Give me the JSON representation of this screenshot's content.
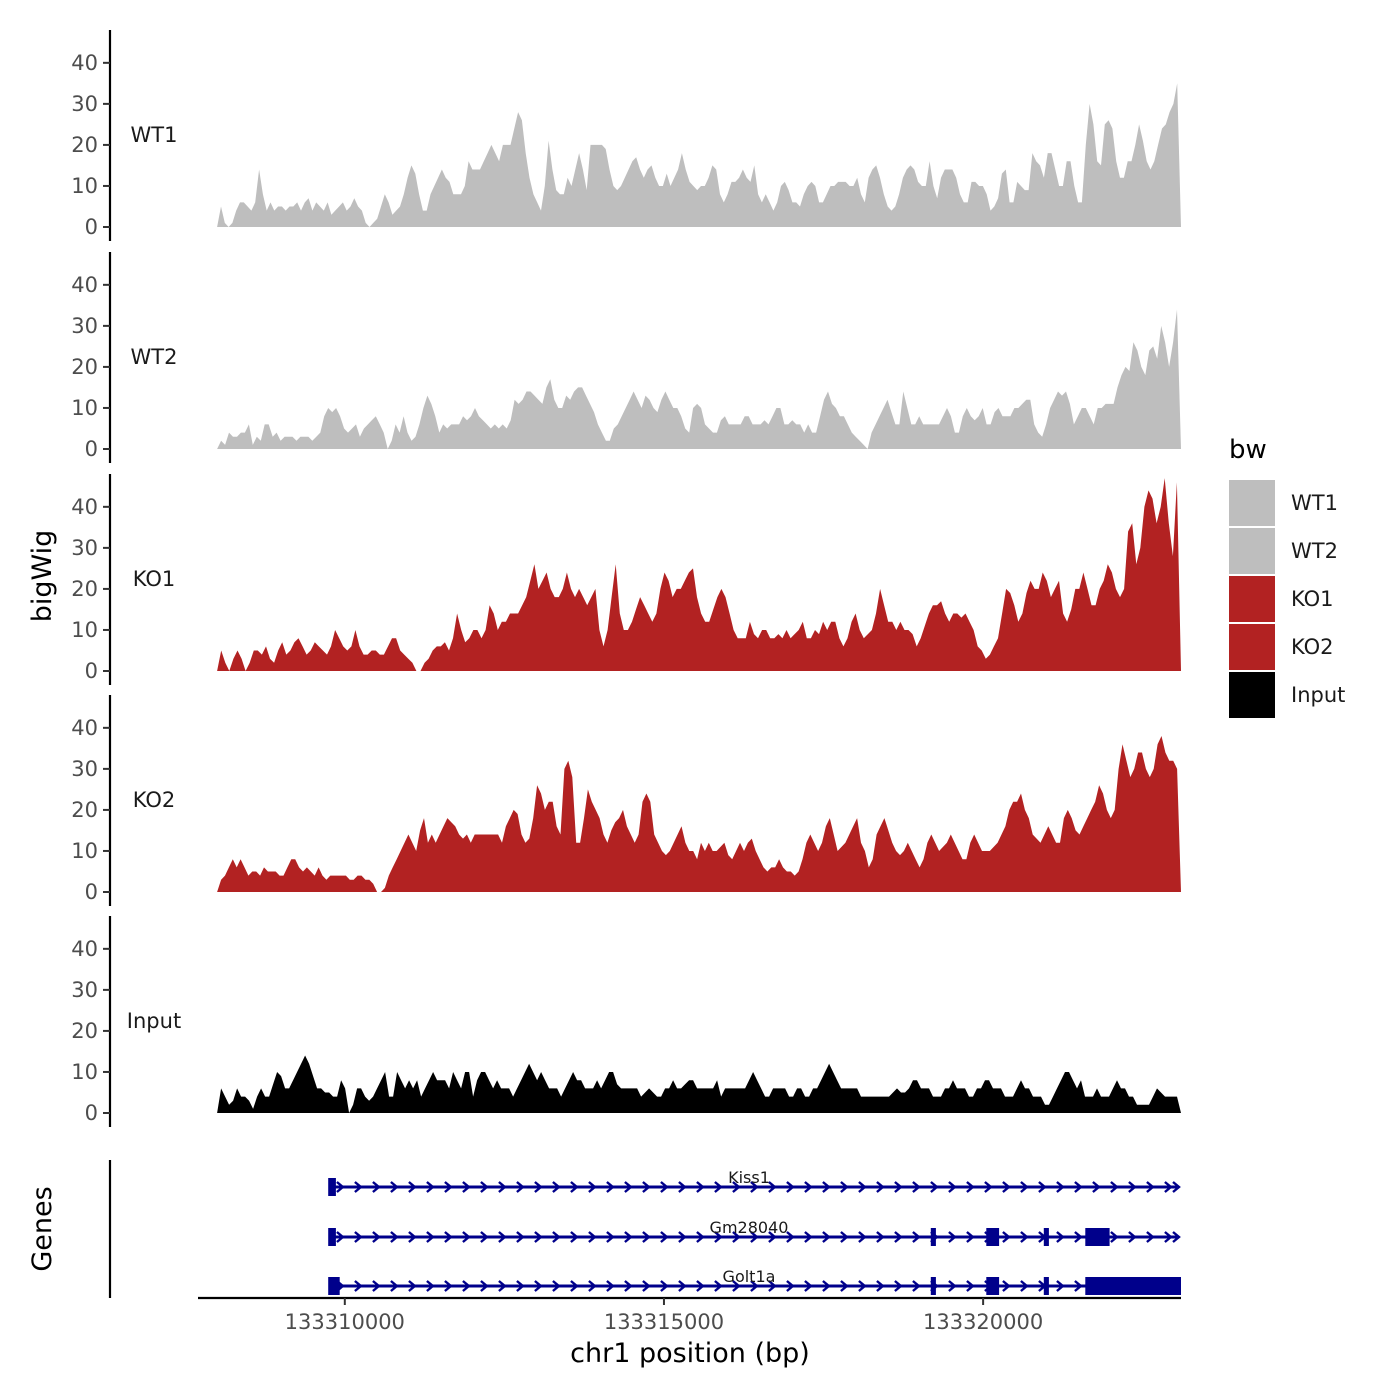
{
  "chart_data": {
    "type": "area",
    "y_axis_title": "bigWig",
    "genes_axis_title": "Genes",
    "x_axis_title": "chr1 position (bp)",
    "xlim": [
      133307700,
      133323100
    ],
    "ylim": [
      0,
      48
    ],
    "y_ticks": [
      0,
      10,
      20,
      30,
      40
    ],
    "x_ticks": [
      133310000,
      133315000,
      133320000
    ],
    "x_tick_labels": [
      "133310000",
      "133315000",
      "133320000"
    ],
    "region_start": 133308000,
    "region_end": 133323100,
    "step_bp": 100,
    "legend": {
      "title": "bw",
      "entries": [
        {
          "label": "WT1",
          "color": "#bebebe"
        },
        {
          "label": "WT2",
          "color": "#bebebe"
        },
        {
          "label": "KO1",
          "color": "#b22222"
        },
        {
          "label": "KO2",
          "color": "#b22222"
        },
        {
          "label": "Input",
          "color": "#000000"
        }
      ]
    },
    "tracks": [
      {
        "name": "WT1",
        "color": "#bebebe",
        "values": [
          0,
          5,
          1,
          0,
          1,
          4,
          6,
          6,
          5,
          4,
          6,
          14,
          8,
          4,
          6,
          4,
          5,
          5,
          4,
          5,
          5,
          6,
          4,
          6,
          7,
          4,
          6,
          5,
          4,
          6,
          3,
          4,
          5,
          6,
          4,
          5,
          7,
          5,
          4,
          1,
          0,
          1,
          2,
          5,
          8,
          6,
          3,
          4,
          5,
          8,
          12,
          15,
          13,
          8,
          4,
          4,
          8,
          10,
          12,
          14,
          12,
          11,
          8,
          8,
          8,
          10,
          16,
          14,
          14,
          14,
          16,
          18,
          20,
          18,
          16,
          20,
          20,
          20,
          24,
          28,
          26,
          18,
          12,
          8,
          6,
          4,
          10,
          21,
          14,
          9,
          8,
          8,
          12,
          10,
          14,
          18,
          14,
          9,
          20,
          20,
          20,
          20,
          19,
          14,
          10,
          9,
          10,
          12,
          14,
          16,
          17,
          14,
          12,
          14,
          15,
          12,
          10,
          10,
          13,
          10,
          12,
          14,
          18,
          14,
          11,
          10,
          9,
          10,
          10,
          12,
          15,
          14,
          8,
          6,
          8,
          11,
          11,
          12,
          14,
          12,
          11,
          15,
          8,
          6,
          8,
          6,
          4,
          6,
          10,
          11,
          9,
          6,
          6,
          5,
          8,
          10,
          11,
          10,
          6,
          6,
          8,
          10,
          10,
          11,
          11,
          11,
          10,
          10,
          12,
          8,
          6,
          12,
          14,
          15,
          12,
          8,
          5,
          4,
          5,
          8,
          12,
          14,
          15,
          14,
          11,
          10,
          10,
          16,
          10,
          7,
          12,
          14,
          14,
          14,
          12,
          8,
          6,
          6,
          11,
          11,
          10,
          10,
          8,
          4,
          5,
          7,
          13,
          14,
          6,
          6,
          11,
          10,
          9,
          9,
          18,
          16,
          15,
          12,
          18,
          18,
          14,
          10,
          10,
          16,
          16,
          10,
          6,
          6,
          20,
          30,
          25,
          16,
          15,
          25,
          26,
          24,
          16,
          12,
          12,
          16,
          16,
          20,
          25,
          21,
          16,
          14,
          16,
          20,
          24,
          25,
          28,
          30,
          35,
          0
        ]
      },
      {
        "name": "WT2",
        "color": "#bebebe",
        "values": [
          0,
          2,
          1,
          4,
          3,
          3,
          4,
          4,
          6,
          1,
          3,
          2,
          6,
          6,
          3,
          4,
          2,
          3,
          3,
          3,
          2,
          3,
          3,
          3,
          2,
          3,
          4,
          8,
          10,
          9,
          10,
          8,
          5,
          4,
          5,
          6,
          3,
          5,
          6,
          7,
          8,
          6,
          4,
          0,
          2,
          6,
          4,
          8,
          4,
          2,
          3,
          6,
          10,
          13,
          11,
          8,
          4,
          6,
          5,
          6,
          6,
          6,
          8,
          7,
          8,
          10,
          8,
          7,
          6,
          5,
          6,
          5,
          6,
          5,
          7,
          12,
          11,
          12,
          14,
          14,
          13,
          12,
          11,
          15,
          17,
          12,
          10,
          10,
          13,
          12,
          14,
          15,
          15,
          13,
          11,
          9,
          6,
          4,
          2,
          2,
          5,
          6,
          8,
          10,
          12,
          14,
          12,
          10,
          13,
          12,
          10,
          9,
          12,
          14,
          12,
          10,
          10,
          8,
          5,
          4,
          10,
          11,
          10,
          6,
          5,
          4,
          4,
          7,
          8,
          6,
          6,
          6,
          6,
          8,
          8,
          6,
          6,
          6,
          7,
          6,
          8,
          10,
          10,
          6,
          6,
          7,
          6,
          6,
          4,
          6,
          4,
          4,
          8,
          12,
          14,
          11,
          10,
          8,
          8,
          6,
          4,
          3,
          2,
          1,
          0,
          4,
          6,
          8,
          10,
          12,
          9,
          6,
          6,
          14,
          10,
          6,
          6,
          8,
          6,
          6,
          6,
          6,
          6,
          8,
          10,
          8,
          4,
          4,
          8,
          10,
          8,
          7,
          8,
          10,
          6,
          6,
          9,
          10,
          8,
          8,
          8,
          10,
          10,
          11,
          12,
          12,
          6,
          4,
          3,
          6,
          10,
          12,
          14,
          13,
          14,
          11,
          6,
          8,
          10,
          10,
          8,
          6,
          10,
          10,
          11,
          11,
          11,
          15,
          18,
          20,
          19,
          26,
          24,
          20,
          18,
          24,
          25,
          22,
          30,
          26,
          20,
          26,
          34,
          0
        ]
      },
      {
        "name": "KO1",
        "color": "#b22222",
        "values": [
          0,
          5,
          2,
          0,
          3,
          5,
          3,
          0,
          2,
          5,
          5,
          4,
          6,
          3,
          2,
          5,
          7,
          4,
          5,
          7,
          8,
          6,
          4,
          5,
          7,
          6,
          5,
          4,
          6,
          10,
          8,
          6,
          5,
          6,
          10,
          6,
          4,
          4,
          5,
          5,
          4,
          4,
          6,
          8,
          8,
          5,
          4,
          3,
          2,
          0,
          0,
          2,
          3,
          5,
          6,
          6,
          7,
          5,
          8,
          14,
          10,
          7,
          8,
          10,
          10,
          8,
          10,
          16,
          14,
          10,
          12,
          12,
          14,
          14,
          14,
          16,
          18,
          22,
          26,
          20,
          22,
          24,
          20,
          18,
          18,
          20,
          24,
          20,
          18,
          20,
          18,
          16,
          18,
          20,
          10,
          6,
          10,
          18,
          26,
          14,
          10,
          10,
          12,
          15,
          18,
          16,
          14,
          12,
          14,
          20,
          24,
          22,
          18,
          20,
          20,
          22,
          24,
          25,
          18,
          14,
          12,
          12,
          15,
          18,
          20,
          18,
          14,
          10,
          8,
          8,
          8,
          12,
          9,
          8,
          10,
          10,
          8,
          8,
          9,
          8,
          10,
          8,
          9,
          10,
          12,
          8,
          8,
          10,
          9,
          12,
          10,
          12,
          12,
          8,
          6,
          8,
          12,
          14,
          10,
          8,
          9,
          10,
          14,
          20,
          16,
          12,
          12,
          10,
          12,
          10,
          10,
          9,
          6,
          8,
          11,
          14,
          16,
          16,
          17,
          14,
          12,
          14,
          14,
          13,
          14,
          12,
          10,
          6,
          5,
          3,
          4,
          6,
          8,
          14,
          20,
          19,
          16,
          12,
          14,
          19,
          22,
          20,
          20,
          24,
          22,
          18,
          20,
          22,
          14,
          12,
          15,
          20,
          20,
          24,
          20,
          16,
          16,
          20,
          22,
          26,
          24,
          20,
          18,
          20,
          34,
          36,
          26,
          30,
          40,
          44,
          42,
          36,
          40,
          47,
          36,
          28,
          46,
          0
        ]
      },
      {
        "name": "KO2",
        "color": "#b22222",
        "values": [
          0,
          3,
          4,
          6,
          8,
          6,
          8,
          6,
          4,
          5,
          5,
          4,
          6,
          5,
          5,
          5,
          4,
          4,
          6,
          8,
          8,
          6,
          5,
          6,
          5,
          4,
          6,
          4,
          3,
          4,
          4,
          4,
          4,
          4,
          3,
          3,
          4,
          4,
          3,
          3,
          2,
          0,
          0,
          1,
          4,
          6,
          8,
          10,
          12,
          14,
          12,
          10,
          15,
          18,
          12,
          14,
          12,
          14,
          16,
          18,
          17,
          16,
          14,
          13,
          14,
          12,
          14,
          14,
          14,
          14,
          14,
          14,
          14,
          12,
          16,
          18,
          20,
          19,
          14,
          12,
          13,
          18,
          26,
          24,
          20,
          22,
          22,
          16,
          14,
          30,
          32,
          28,
          12,
          12,
          18,
          25,
          22,
          20,
          18,
          14,
          12,
          15,
          17,
          18,
          20,
          16,
          14,
          12,
          14,
          22,
          24,
          22,
          14,
          12,
          10,
          9,
          10,
          12,
          14,
          16,
          12,
          10,
          10,
          8,
          12,
          10,
          12,
          10,
          10,
          11,
          12,
          9,
          8,
          10,
          12,
          10,
          12,
          13,
          10,
          8,
          6,
          5,
          6,
          6,
          8,
          6,
          5,
          5,
          4,
          5,
          8,
          12,
          14,
          12,
          10,
          12,
          16,
          18,
          14,
          10,
          11,
          12,
          14,
          16,
          18,
          12,
          10,
          6,
          8,
          14,
          16,
          18,
          15,
          12,
          10,
          9,
          10,
          12,
          10,
          8,
          6,
          8,
          12,
          14,
          12,
          10,
          11,
          12,
          14,
          12,
          10,
          8,
          8,
          12,
          14,
          12,
          10,
          10,
          10,
          11,
          12,
          14,
          16,
          20,
          22,
          22,
          24,
          20,
          18,
          14,
          13,
          12,
          14,
          16,
          14,
          12,
          12,
          18,
          20,
          18,
          15,
          14,
          16,
          18,
          20,
          22,
          26,
          24,
          20,
          18,
          20,
          30,
          36,
          32,
          28,
          30,
          34,
          34,
          30,
          28,
          30,
          36,
          38,
          34,
          32,
          32,
          30,
          0
        ]
      },
      {
        "name": "Input",
        "color": "#000000",
        "values": [
          0,
          6,
          4,
          2,
          3,
          6,
          4,
          4,
          3,
          1,
          4,
          6,
          4,
          4,
          7,
          10,
          9,
          6,
          6,
          8,
          10,
          12,
          14,
          12,
          9,
          6,
          6,
          5,
          5,
          4,
          4,
          8,
          6,
          0,
          2,
          6,
          6,
          4,
          3,
          4,
          6,
          8,
          10,
          4,
          4,
          10,
          8,
          6,
          8,
          6,
          8,
          4,
          6,
          8,
          10,
          8,
          8,
          8,
          6,
          10,
          8,
          6,
          10,
          10,
          4,
          8,
          10,
          10,
          8,
          6,
          8,
          6,
          6,
          6,
          4,
          6,
          8,
          10,
          12,
          10,
          8,
          10,
          8,
          6,
          6,
          6,
          4,
          6,
          8,
          10,
          8,
          8,
          6,
          6,
          6,
          8,
          6,
          8,
          10,
          10,
          7,
          6,
          6,
          6,
          6,
          6,
          4,
          5,
          6,
          5,
          4,
          4,
          6,
          6,
          8,
          6,
          6,
          7,
          8,
          8,
          6,
          6,
          6,
          6,
          6,
          8,
          4,
          6,
          6,
          6,
          6,
          6,
          6,
          8,
          10,
          8,
          6,
          4,
          4,
          6,
          6,
          6,
          6,
          4,
          4,
          6,
          6,
          4,
          4,
          6,
          6,
          8,
          10,
          12,
          10,
          8,
          6,
          6,
          6,
          6,
          6,
          4,
          4,
          4,
          4,
          4,
          4,
          4,
          4,
          5,
          6,
          5,
          5,
          6,
          8,
          8,
          6,
          6,
          6,
          4,
          4,
          4,
          6,
          6,
          8,
          6,
          6,
          6,
          4,
          4,
          6,
          6,
          8,
          8,
          6,
          6,
          6,
          4,
          4,
          4,
          6,
          8,
          6,
          6,
          4,
          4,
          4,
          2,
          2,
          4,
          6,
          8,
          10,
          10,
          8,
          6,
          8,
          4,
          4,
          4,
          6,
          4,
          4,
          4,
          6,
          8,
          6,
          6,
          4,
          4,
          2,
          2,
          2,
          2,
          4,
          6,
          5,
          4,
          4,
          4,
          4,
          0
        ]
      }
    ],
    "genes": [
      {
        "name": "Kiss1",
        "start": 133309750,
        "end": 133323100,
        "exons": [
          [
            133309740,
            133309860
          ]
        ]
      },
      {
        "name": "Gm28040",
        "start": 133309750,
        "end": 133323100,
        "exons": [
          [
            133309740,
            133309860
          ],
          [
            133319180,
            133319260
          ],
          [
            133320050,
            133320250
          ],
          [
            133320950,
            133321030
          ],
          [
            133321600,
            133321980
          ]
        ]
      },
      {
        "name": "Golt1a",
        "start": 133309750,
        "end": 133323100,
        "exons": [
          [
            133309740,
            133309920
          ],
          [
            133319180,
            133319260
          ],
          [
            133320050,
            133320250
          ],
          [
            133320950,
            133321030
          ],
          [
            133321600,
            133323100
          ]
        ]
      }
    ]
  }
}
